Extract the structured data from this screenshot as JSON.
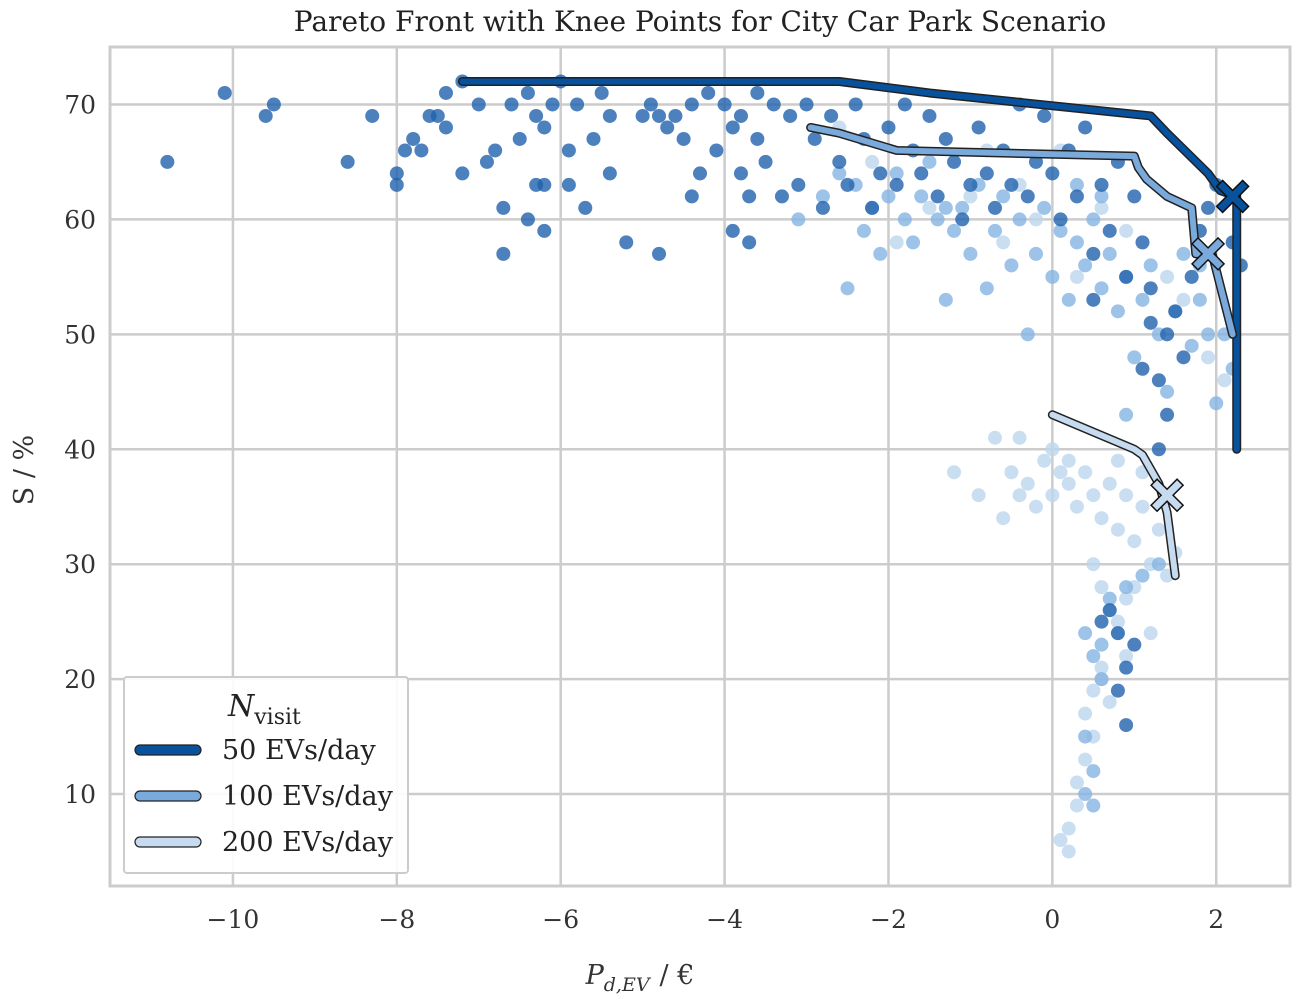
{
  "chart_data": {
    "type": "scatter",
    "title": "Pareto Front with Knee Points for City Car Park Scenario",
    "xlabel_symbol": "P",
    "xlabel_subscript": "d,EV",
    "xlabel_unit": "/ €",
    "ylabel": "S / %",
    "xlim": [
      -11.5,
      2.9
    ],
    "ylim": [
      2,
      75
    ],
    "xticks": [
      -10,
      -8,
      -6,
      -4,
      -2,
      0,
      2
    ],
    "xtick_labels": [
      "−10",
      "−8",
      "−6",
      "−4",
      "−2",
      "0",
      "2"
    ],
    "yticks": [
      10,
      20,
      30,
      40,
      50,
      60,
      70
    ],
    "ytick_labels": [
      "10",
      "20",
      "30",
      "40",
      "50",
      "60",
      "70"
    ],
    "grid": true,
    "legend": {
      "title_symbol": "N",
      "title_subscript": "visit",
      "placement": "lower-left"
    },
    "series": [
      {
        "name": "50 EVs/day",
        "color": "#08519c",
        "point_color": "#1f62ad",
        "points": [
          [
            -10.8,
            65
          ],
          [
            -10.1,
            71
          ],
          [
            -9.6,
            69
          ],
          [
            -9.5,
            70
          ],
          [
            -8.6,
            65
          ],
          [
            -8.3,
            69
          ],
          [
            -8.0,
            63
          ],
          [
            -8.0,
            64
          ],
          [
            -7.9,
            66
          ],
          [
            -7.8,
            67
          ],
          [
            -7.7,
            66
          ],
          [
            -7.6,
            69
          ],
          [
            -7.5,
            69
          ],
          [
            -7.4,
            68
          ],
          [
            -7.4,
            71
          ],
          [
            -7.2,
            64
          ],
          [
            -7.2,
            72
          ],
          [
            -7.0,
            70
          ],
          [
            -6.9,
            65
          ],
          [
            -6.8,
            66
          ],
          [
            -6.7,
            57
          ],
          [
            -6.7,
            61
          ],
          [
            -6.6,
            70
          ],
          [
            -6.5,
            67
          ],
          [
            -6.4,
            71
          ],
          [
            -6.4,
            60
          ],
          [
            -6.3,
            69
          ],
          [
            -6.3,
            63
          ],
          [
            -6.2,
            68
          ],
          [
            -6.2,
            63
          ],
          [
            -6.2,
            59
          ],
          [
            -6.1,
            70
          ],
          [
            -6.0,
            72
          ],
          [
            -5.9,
            66
          ],
          [
            -5.9,
            63
          ],
          [
            -5.8,
            70
          ],
          [
            -5.7,
            61
          ],
          [
            -5.6,
            67
          ],
          [
            -5.5,
            71
          ],
          [
            -5.4,
            69
          ],
          [
            -5.4,
            64
          ],
          [
            -5.2,
            58
          ],
          [
            -5.0,
            69
          ],
          [
            -4.9,
            70
          ],
          [
            -4.8,
            69
          ],
          [
            -4.8,
            57
          ],
          [
            -4.7,
            68
          ],
          [
            -4.6,
            69
          ],
          [
            -4.5,
            67
          ],
          [
            -4.4,
            70
          ],
          [
            -4.4,
            62
          ],
          [
            -4.3,
            64
          ],
          [
            -4.2,
            71
          ],
          [
            -4.1,
            66
          ],
          [
            -4.0,
            70
          ],
          [
            -3.9,
            59
          ],
          [
            -3.9,
            68
          ],
          [
            -3.8,
            69
          ],
          [
            -3.8,
            64
          ],
          [
            -3.7,
            62
          ],
          [
            -3.7,
            58
          ],
          [
            -3.6,
            71
          ],
          [
            -3.6,
            67
          ],
          [
            -3.5,
            65
          ],
          [
            -3.4,
            70
          ],
          [
            -3.3,
            62
          ],
          [
            -3.2,
            69
          ],
          [
            -3.1,
            63
          ],
          [
            -3.0,
            70
          ],
          [
            -2.9,
            67
          ],
          [
            -2.8,
            61
          ],
          [
            -2.7,
            69
          ],
          [
            -2.6,
            65
          ],
          [
            -2.5,
            63
          ],
          [
            -2.4,
            70
          ],
          [
            -2.3,
            67
          ],
          [
            -2.2,
            61
          ],
          [
            -2.1,
            64
          ],
          [
            -2.0,
            68
          ],
          [
            -1.9,
            63
          ],
          [
            -1.8,
            70
          ],
          [
            -1.7,
            66
          ],
          [
            -1.6,
            64
          ],
          [
            -1.5,
            69
          ],
          [
            -1.4,
            62
          ],
          [
            -1.3,
            67
          ],
          [
            -1.2,
            65
          ],
          [
            -1.1,
            60
          ],
          [
            -1.0,
            63
          ],
          [
            -0.9,
            68
          ],
          [
            -0.8,
            64
          ],
          [
            -0.7,
            61
          ],
          [
            -0.6,
            66
          ],
          [
            -0.5,
            63
          ],
          [
            -0.4,
            70
          ],
          [
            -0.3,
            62
          ],
          [
            -0.2,
            65
          ],
          [
            -0.1,
            69
          ],
          [
            0.0,
            64
          ],
          [
            0.1,
            60
          ],
          [
            0.2,
            66
          ],
          [
            0.3,
            62
          ],
          [
            0.4,
            68
          ],
          [
            0.5,
            57
          ],
          [
            0.6,
            63
          ],
          [
            0.7,
            59
          ],
          [
            0.8,
            65
          ],
          [
            0.9,
            55
          ],
          [
            1.0,
            62
          ],
          [
            1.1,
            58
          ],
          [
            1.1,
            47
          ],
          [
            1.2,
            51
          ],
          [
            1.3,
            46
          ],
          [
            1.3,
            40
          ],
          [
            1.4,
            43
          ],
          [
            1.5,
            52
          ],
          [
            1.6,
            48
          ],
          [
            1.7,
            55
          ],
          [
            1.8,
            59
          ],
          [
            1.9,
            61
          ],
          [
            2.0,
            63
          ],
          [
            2.2,
            58
          ],
          [
            2.3,
            56
          ],
          [
            0.7,
            26
          ],
          [
            0.8,
            24
          ],
          [
            0.9,
            21
          ],
          [
            1.0,
            23
          ],
          [
            0.6,
            25
          ],
          [
            0.8,
            19
          ],
          [
            0.9,
            16
          ],
          [
            1.2,
            54
          ],
          [
            1.4,
            50
          ],
          [
            0.5,
            53
          ]
        ],
        "front": [
          [
            -7.2,
            72
          ],
          [
            -2.6,
            72
          ],
          [
            -1.5,
            71
          ],
          [
            1.2,
            69
          ],
          [
            1.4,
            67.5
          ],
          [
            1.9,
            64
          ],
          [
            2.05,
            62.5
          ],
          [
            2.25,
            62
          ],
          [
            2.25,
            40
          ]
        ],
        "knee": [
          2.2,
          62
        ]
      },
      {
        "name": "100 EVs/day",
        "color": "#7aa9db",
        "point_color": "#86b4e2",
        "points": [
          [
            -3.1,
            60
          ],
          [
            -2.8,
            62
          ],
          [
            -2.6,
            64
          ],
          [
            -2.4,
            63
          ],
          [
            -2.3,
            59
          ],
          [
            -2.2,
            61
          ],
          [
            -2.1,
            57
          ],
          [
            -2.0,
            62
          ],
          [
            -1.9,
            64
          ],
          [
            -1.8,
            60
          ],
          [
            -1.7,
            58
          ],
          [
            -1.6,
            62
          ],
          [
            -1.5,
            65
          ],
          [
            -1.4,
            60
          ],
          [
            -1.3,
            53
          ],
          [
            -1.2,
            59
          ],
          [
            -1.1,
            61
          ],
          [
            -1.0,
            57
          ],
          [
            -0.9,
            63
          ],
          [
            -0.8,
            54
          ],
          [
            -0.7,
            59
          ],
          [
            -0.6,
            62
          ],
          [
            -0.5,
            56
          ],
          [
            -0.4,
            60
          ],
          [
            -0.3,
            50
          ],
          [
            -0.2,
            57
          ],
          [
            -0.1,
            61
          ],
          [
            0.0,
            55
          ],
          [
            0.1,
            59
          ],
          [
            0.2,
            53
          ],
          [
            0.3,
            58
          ],
          [
            0.4,
            56
          ],
          [
            0.5,
            60
          ],
          [
            0.6,
            54
          ],
          [
            0.7,
            57
          ],
          [
            0.8,
            52
          ],
          [
            0.9,
            55
          ],
          [
            1.0,
            48
          ],
          [
            1.1,
            53
          ],
          [
            1.2,
            56
          ],
          [
            1.3,
            50
          ],
          [
            1.4,
            45
          ],
          [
            1.5,
            52
          ],
          [
            1.6,
            57
          ],
          [
            1.7,
            49
          ],
          [
            1.8,
            53
          ],
          [
            1.9,
            50
          ],
          [
            2.0,
            44
          ],
          [
            2.1,
            50
          ],
          [
            2.2,
            47
          ],
          [
            -2.5,
            54
          ],
          [
            -1.3,
            61
          ],
          [
            0.9,
            43
          ],
          [
            0.6,
            62
          ],
          [
            0.3,
            63
          ],
          [
            1.8,
            56
          ],
          [
            0.4,
            24
          ],
          [
            0.5,
            22
          ],
          [
            0.6,
            20
          ],
          [
            0.4,
            15
          ],
          [
            0.5,
            12
          ],
          [
            0.4,
            10
          ],
          [
            0.5,
            9
          ],
          [
            0.7,
            27
          ],
          [
            0.9,
            28
          ],
          [
            1.1,
            29
          ],
          [
            1.3,
            30
          ],
          [
            0.6,
            23
          ]
        ],
        "front": [
          [
            -2.95,
            68
          ],
          [
            -2.6,
            67.5
          ],
          [
            -1.9,
            66
          ],
          [
            1.0,
            65.5
          ],
          [
            1.05,
            64.5
          ],
          [
            1.15,
            63.5
          ],
          [
            1.4,
            62
          ],
          [
            1.7,
            61
          ],
          [
            1.75,
            57
          ],
          [
            1.95,
            57
          ],
          [
            2.2,
            50
          ]
        ],
        "knee": [
          1.9,
          57
        ]
      },
      {
        "name": "200 EVs/day",
        "color": "#c6dbef",
        "point_color": "#bdd6ee",
        "points": [
          [
            -1.2,
            38
          ],
          [
            -0.9,
            36
          ],
          [
            -0.7,
            41
          ],
          [
            -0.6,
            34
          ],
          [
            -0.5,
            38
          ],
          [
            -0.4,
            36
          ],
          [
            -0.3,
            37
          ],
          [
            -0.2,
            35
          ],
          [
            -0.1,
            39
          ],
          [
            0.0,
            36
          ],
          [
            0.1,
            38
          ],
          [
            0.2,
            37
          ],
          [
            0.3,
            35
          ],
          [
            0.4,
            38
          ],
          [
            0.5,
            36
          ],
          [
            0.6,
            34
          ],
          [
            0.7,
            37
          ],
          [
            0.8,
            33
          ],
          [
            0.9,
            36
          ],
          [
            1.0,
            32
          ],
          [
            1.1,
            35
          ],
          [
            1.2,
            30
          ],
          [
            1.3,
            33
          ],
          [
            1.4,
            29
          ],
          [
            1.5,
            31
          ],
          [
            0.5,
            30
          ],
          [
            0.6,
            28
          ],
          [
            0.7,
            26
          ],
          [
            0.8,
            24
          ],
          [
            0.9,
            22
          ],
          [
            0.6,
            20
          ],
          [
            0.5,
            19
          ],
          [
            0.4,
            17
          ],
          [
            0.5,
            15
          ],
          [
            0.4,
            13
          ],
          [
            0.3,
            11
          ],
          [
            0.3,
            9
          ],
          [
            0.2,
            7
          ],
          [
            0.2,
            5
          ],
          [
            0.1,
            6
          ],
          [
            0.6,
            21
          ],
          [
            0.7,
            18
          ],
          [
            0.8,
            25
          ],
          [
            0.9,
            27
          ],
          [
            1.0,
            28
          ],
          [
            1.2,
            24
          ],
          [
            -0.4,
            41
          ],
          [
            0.0,
            40
          ],
          [
            0.2,
            39
          ],
          [
            1.1,
            38
          ],
          [
            0.8,
            39
          ],
          [
            -0.2,
            60
          ],
          [
            -0.6,
            58
          ],
          [
            0.3,
            55
          ],
          [
            0.9,
            59
          ],
          [
            -1.0,
            62
          ],
          [
            -0.4,
            63
          ],
          [
            0.1,
            66
          ],
          [
            0.6,
            61
          ],
          [
            -0.8,
            66
          ],
          [
            -1.5,
            61
          ],
          [
            -1.9,
            58
          ],
          [
            -2.2,
            65
          ],
          [
            -2.6,
            68
          ],
          [
            1.4,
            55
          ],
          [
            1.6,
            53
          ],
          [
            1.9,
            48
          ],
          [
            2.1,
            46
          ]
        ],
        "front": [
          [
            0.0,
            43
          ],
          [
            1.0,
            40
          ],
          [
            1.1,
            39.5
          ],
          [
            1.3,
            37
          ],
          [
            1.4,
            34.5
          ],
          [
            1.5,
            29
          ]
        ],
        "knee": [
          1.4,
          36
        ]
      }
    ]
  }
}
